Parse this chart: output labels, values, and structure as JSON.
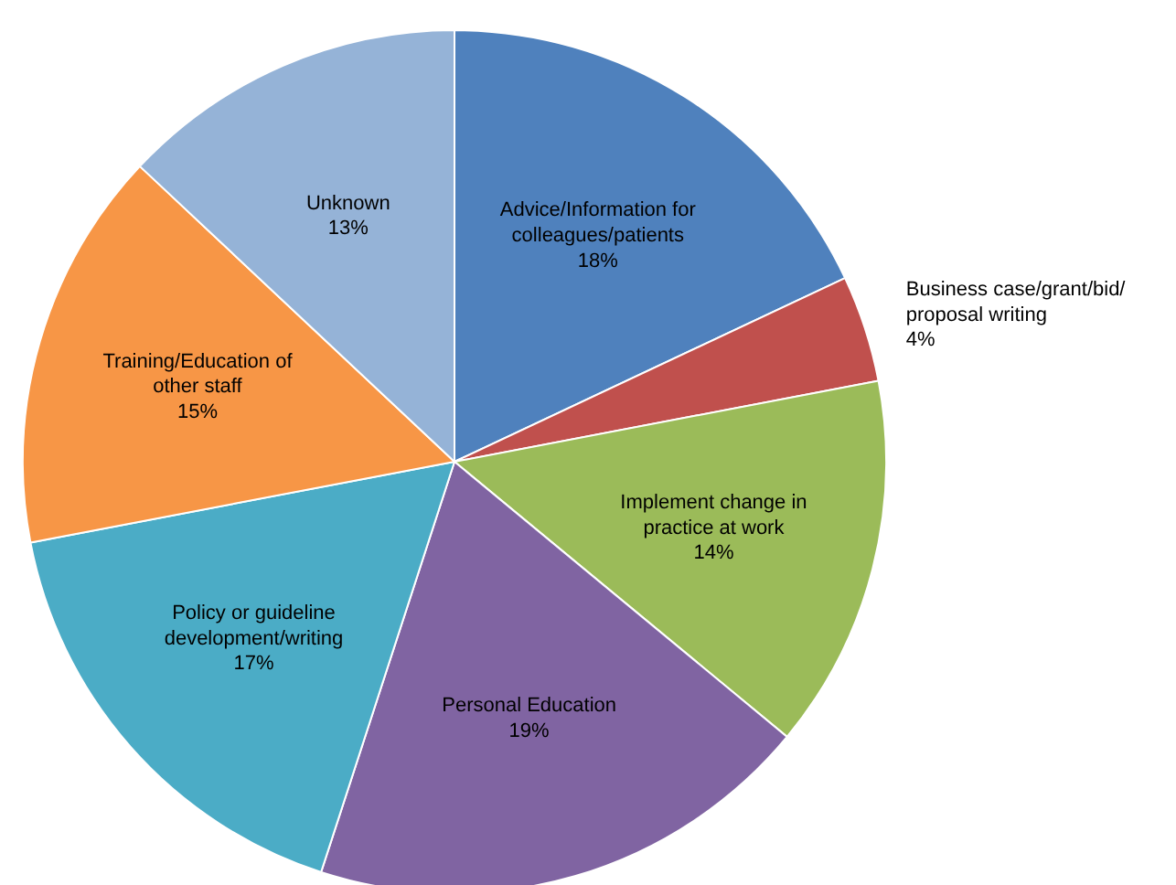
{
  "chart_data": {
    "type": "pie",
    "categories": [
      "Advice/Information for colleagues/patients",
      "Business case/grant/bid/ proposal writing",
      "Implement change in practice at work",
      "Personal Education",
      "Policy or guideline development/writing",
      "Training/Education of other staff",
      "Unknown"
    ],
    "values": [
      18,
      4,
      14,
      19,
      17,
      15,
      13
    ],
    "value_labels": [
      "18%",
      "4%",
      "14%",
      "19%",
      "17%",
      "15%",
      "13%"
    ],
    "colors": [
      "#4f81bd",
      "#c0504d",
      "#9bbb59",
      "#8064a2",
      "#4bacc6",
      "#f79646",
      "#95b3d7"
    ],
    "legend": false
  }
}
